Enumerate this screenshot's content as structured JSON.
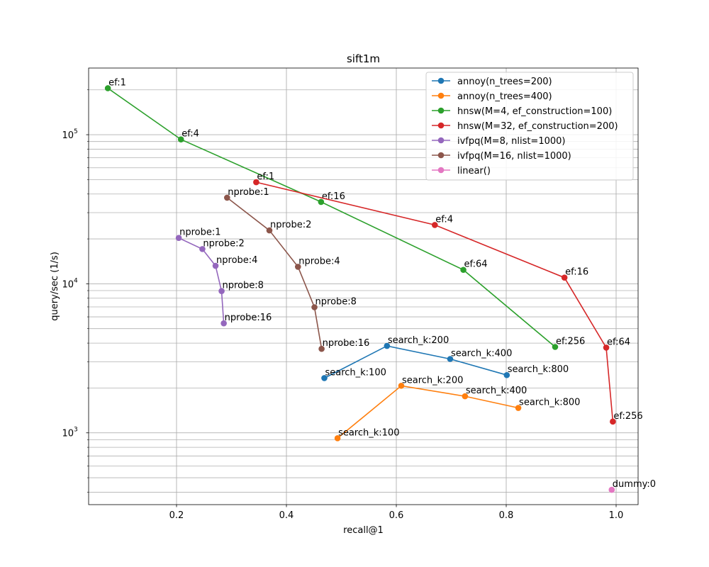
{
  "chart_data": {
    "type": "line",
    "title": "sift1m",
    "xlabel": "recall@1",
    "ylabel": "query/sec (1/s)",
    "xscale": "linear",
    "yscale": "log",
    "xlim": [
      0.04,
      1.04
    ],
    "ylim": [
      330,
      280000
    ],
    "x_ticks": [
      0.2,
      0.4,
      0.6,
      0.8,
      1.0
    ],
    "x_tick_labels": [
      "0.2",
      "0.4",
      "0.6",
      "0.8",
      "1.0"
    ],
    "y_major_ticks": [
      1000,
      10000,
      100000
    ],
    "y_tick_labels": [
      "10",
      "10",
      "10"
    ],
    "y_tick_exponents": [
      "3",
      "4",
      "5"
    ],
    "grid": "on (major and minor)",
    "legend_position": "upper-right",
    "series": [
      {
        "name": "annoy(n_trees=200)",
        "color": "#1f77b4",
        "points": [
          {
            "x": 0.469,
            "y": 2330,
            "label": "search_k:100"
          },
          {
            "x": 0.583,
            "y": 3830,
            "label": "search_k:200"
          },
          {
            "x": 0.698,
            "y": 3130,
            "label": "search_k:400"
          },
          {
            "x": 0.801,
            "y": 2440,
            "label": "search_k:800"
          }
        ]
      },
      {
        "name": "annoy(n_trees=400)",
        "color": "#ff7f0e",
        "points": [
          {
            "x": 0.493,
            "y": 920,
            "label": "search_k:100"
          },
          {
            "x": 0.609,
            "y": 2070,
            "label": "search_k:200"
          },
          {
            "x": 0.725,
            "y": 1760,
            "label": "search_k:400"
          },
          {
            "x": 0.822,
            "y": 1470,
            "label": "search_k:800"
          }
        ]
      },
      {
        "name": "hnsw(M=4, ef_construction=100)",
        "color": "#2ca02c",
        "points": [
          {
            "x": 0.075,
            "y": 205000,
            "label": "ef:1"
          },
          {
            "x": 0.208,
            "y": 93000,
            "label": "ef:4"
          },
          {
            "x": 0.463,
            "y": 35400,
            "label": "ef:16"
          },
          {
            "x": 0.722,
            "y": 12400,
            "label": "ef:64"
          },
          {
            "x": 0.889,
            "y": 3770,
            "label": "ef:256"
          }
        ]
      },
      {
        "name": "hnsw(M=32, ef_construction=200)",
        "color": "#d62728",
        "points": [
          {
            "x": 0.345,
            "y": 48000,
            "label": "ef:1"
          },
          {
            "x": 0.67,
            "y": 24800,
            "label": "ef:4"
          },
          {
            "x": 0.906,
            "y": 11000,
            "label": "ef:16"
          },
          {
            "x": 0.982,
            "y": 3730,
            "label": "ef:64"
          },
          {
            "x": 0.994,
            "y": 1190,
            "label": "ef:256"
          }
        ]
      },
      {
        "name": "ivfpq(M=8, nlist=1000)",
        "color": "#9467bd",
        "points": [
          {
            "x": 0.204,
            "y": 20300,
            "label": "nprobe:1"
          },
          {
            "x": 0.247,
            "y": 17100,
            "label": "nprobe:2"
          },
          {
            "x": 0.271,
            "y": 13200,
            "label": "nprobe:4"
          },
          {
            "x": 0.282,
            "y": 8930,
            "label": "nprobe:8"
          },
          {
            "x": 0.286,
            "y": 5430,
            "label": "nprobe:16"
          }
        ]
      },
      {
        "name": "ivfpq(M=16, nlist=1000)",
        "color": "#8c564b",
        "points": [
          {
            "x": 0.292,
            "y": 37800,
            "label": "nprobe:1"
          },
          {
            "x": 0.369,
            "y": 22800,
            "label": "nprobe:2"
          },
          {
            "x": 0.421,
            "y": 13000,
            "label": "nprobe:4"
          },
          {
            "x": 0.451,
            "y": 6960,
            "label": "nprobe:8"
          },
          {
            "x": 0.464,
            "y": 3660,
            "label": "nprobe:16"
          }
        ]
      },
      {
        "name": "linear()",
        "color": "#e377c2",
        "points": [
          {
            "x": 0.992,
            "y": 415,
            "label": "dummy:0"
          }
        ]
      }
    ]
  }
}
